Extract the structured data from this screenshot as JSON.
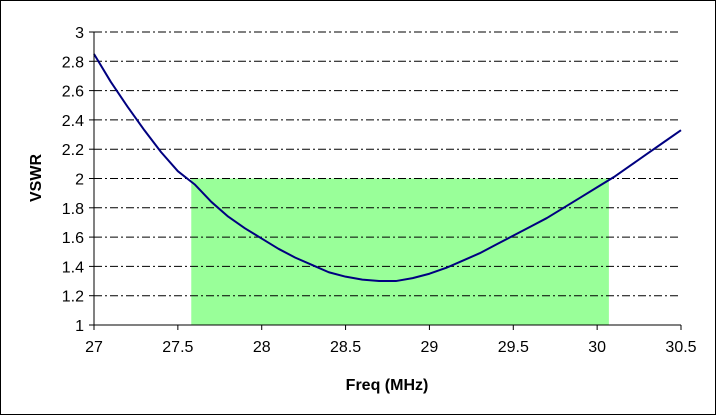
{
  "chart_data": {
    "type": "line",
    "title": "",
    "xlabel": "Freq (MHz)",
    "ylabel": "VSWR",
    "xlim": [
      27,
      30.5
    ],
    "ylim": [
      1,
      3
    ],
    "x_ticks": [
      "27",
      "27.5",
      "28",
      "28.5",
      "29",
      "29.5",
      "30",
      "30.5"
    ],
    "y_ticks": [
      "1",
      "1.2",
      "1.4",
      "1.6",
      "1.8",
      "2",
      "2.2",
      "2.4",
      "2.6",
      "2.8",
      "3"
    ],
    "grid": "horizontal dash-dot",
    "legend": "none",
    "series": [
      {
        "color": "#000080",
        "x": [
          27,
          27.1,
          27.2,
          27.3,
          27.4,
          27.5,
          27.6,
          27.7,
          27.8,
          27.9,
          28,
          28.1,
          28.2,
          28.3,
          28.4,
          28.5,
          28.6,
          28.7,
          28.8,
          28.9,
          29,
          29.1,
          29.2,
          29.3,
          29.4,
          29.5,
          29.6,
          29.7,
          29.8,
          29.9,
          30,
          30.1,
          30.2,
          30.3,
          30.4,
          30.5
        ],
        "y": [
          2.85,
          2.66,
          2.49,
          2.33,
          2.18,
          2.05,
          1.96,
          1.84,
          1.74,
          1.66,
          1.59,
          1.52,
          1.46,
          1.41,
          1.36,
          1.33,
          1.31,
          1.3,
          1.3,
          1.32,
          1.35,
          1.39,
          1.44,
          1.49,
          1.55,
          1.61,
          1.67,
          1.73,
          1.8,
          1.87,
          1.94,
          2.01,
          2.09,
          2.17,
          2.25,
          2.33
        ]
      }
    ],
    "highlight_band": {
      "x_start": 27.58,
      "x_end": 30.07,
      "y_start": 1,
      "y_end": 2,
      "color": "#99FF99"
    }
  }
}
